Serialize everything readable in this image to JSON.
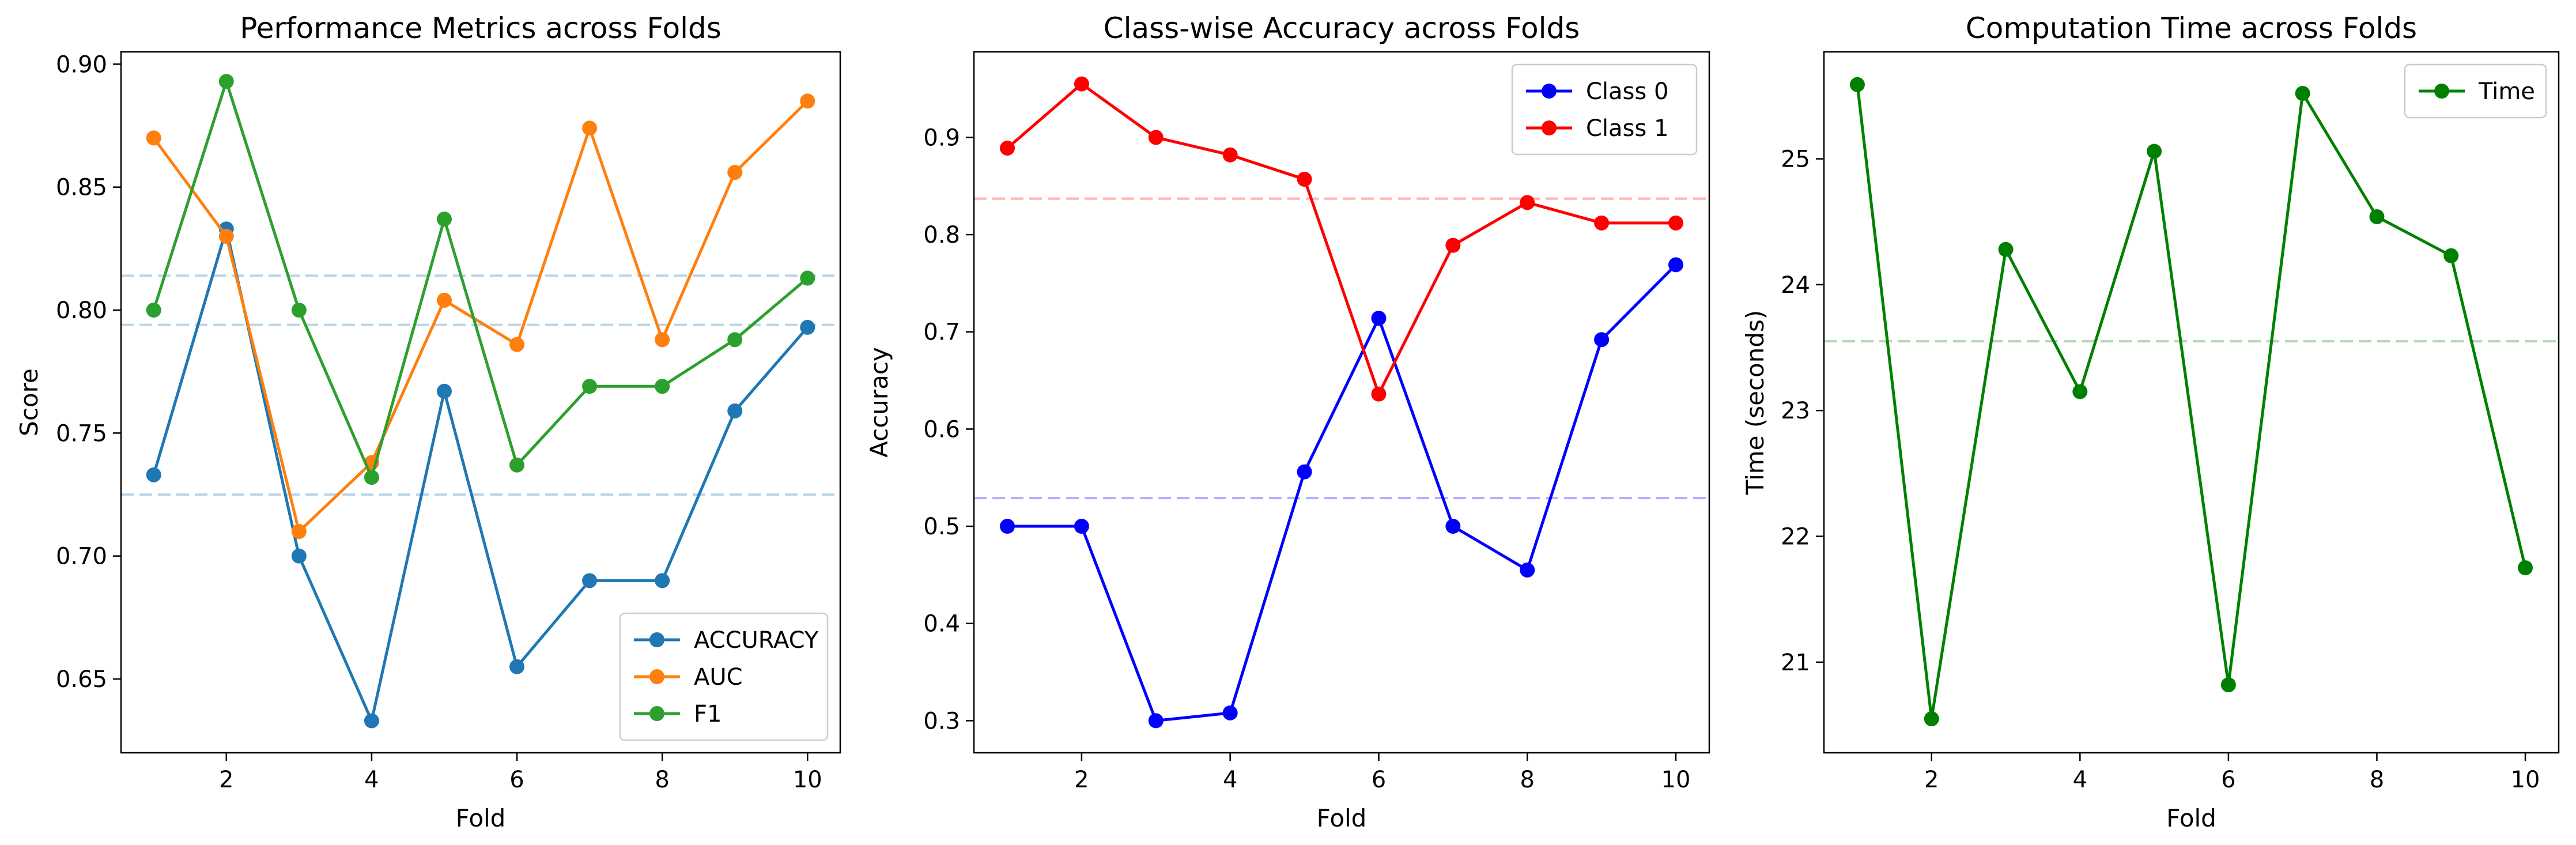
{
  "chart_data": [
    {
      "type": "line",
      "title": "Performance Metrics across Folds",
      "xlabel": "Fold",
      "ylabel": "Score",
      "xlim": [
        0.55,
        10.45
      ],
      "ylim": [
        0.62,
        0.905
      ],
      "xticks": [
        2,
        4,
        6,
        8,
        10
      ],
      "yticks": [
        0.65,
        0.7,
        0.75,
        0.8,
        0.85,
        0.9
      ],
      "ytick_labels": [
        "0.65",
        "0.70",
        "0.75",
        "0.80",
        "0.85",
        "0.90"
      ],
      "grid": false,
      "legend_position": "lower-right",
      "x": [
        1,
        2,
        3,
        4,
        5,
        6,
        7,
        8,
        9,
        10
      ],
      "series": [
        {
          "name": "ACCURACY",
          "color": "#1f77b4",
          "values": [
            0.733,
            0.833,
            0.7,
            0.633,
            0.767,
            0.655,
            0.69,
            0.69,
            0.759,
            0.793
          ]
        },
        {
          "name": "AUC",
          "color": "#ff7f0e",
          "values": [
            0.87,
            0.83,
            0.71,
            0.738,
            0.804,
            0.786,
            0.874,
            0.788,
            0.856,
            0.885
          ]
        },
        {
          "name": "F1",
          "color": "#2ca02c",
          "values": [
            0.8,
            0.893,
            0.8,
            0.732,
            0.837,
            0.737,
            0.769,
            0.769,
            0.788,
            0.813
          ]
        }
      ],
      "mean_lines": [
        {
          "y": 0.725,
          "color": "#1f77b4"
        },
        {
          "y": 0.814,
          "color": "#1f77b4"
        },
        {
          "y": 0.794,
          "color": "#1f77b4"
        }
      ]
    },
    {
      "type": "line",
      "title": "Class-wise Accuracy across Folds",
      "xlabel": "Fold",
      "ylabel": "Accuracy",
      "xlim": [
        0.55,
        10.45
      ],
      "ylim": [
        0.267,
        0.988
      ],
      "xticks": [
        2,
        4,
        6,
        8,
        10
      ],
      "yticks": [
        0.3,
        0.4,
        0.5,
        0.6,
        0.7,
        0.8,
        0.9
      ],
      "ytick_labels": [
        "0.3",
        "0.4",
        "0.5",
        "0.6",
        "0.7",
        "0.8",
        "0.9"
      ],
      "grid": false,
      "legend_position": "upper-right",
      "x": [
        1,
        2,
        3,
        4,
        5,
        6,
        7,
        8,
        9,
        10
      ],
      "series": [
        {
          "name": "Class 0",
          "color": "#0000ff",
          "values": [
            0.5,
            0.5,
            0.3,
            0.308,
            0.556,
            0.714,
            0.5,
            0.455,
            0.692,
            0.769
          ]
        },
        {
          "name": "Class 1",
          "color": "#ff0000",
          "values": [
            0.889,
            0.955,
            0.9,
            0.882,
            0.857,
            0.636,
            0.789,
            0.833,
            0.812,
            0.812
          ]
        }
      ],
      "mean_lines": [
        {
          "y": 0.529,
          "color": "#0000ff"
        },
        {
          "y": 0.837,
          "color": "#ff0000"
        }
      ]
    },
    {
      "type": "line",
      "title": "Computation Time across Folds",
      "xlabel": "Fold",
      "ylabel": "Time (seconds)",
      "xlim": [
        0.55,
        10.45
      ],
      "ylim": [
        20.28,
        25.85
      ],
      "xticks": [
        2,
        4,
        6,
        8,
        10
      ],
      "yticks": [
        21,
        22,
        23,
        24,
        25
      ],
      "ytick_labels": [
        "21",
        "22",
        "23",
        "24",
        "25"
      ],
      "grid": false,
      "legend_position": "upper-right",
      "x": [
        1,
        2,
        3,
        4,
        5,
        6,
        7,
        8,
        9,
        10
      ],
      "series": [
        {
          "name": "Time",
          "color": "#008000",
          "values": [
            25.59,
            20.55,
            24.28,
            23.15,
            25.06,
            20.82,
            25.52,
            24.54,
            24.23,
            21.75
          ]
        }
      ],
      "mean_lines": [
        {
          "y": 23.55,
          "color": "#008000"
        }
      ]
    }
  ]
}
